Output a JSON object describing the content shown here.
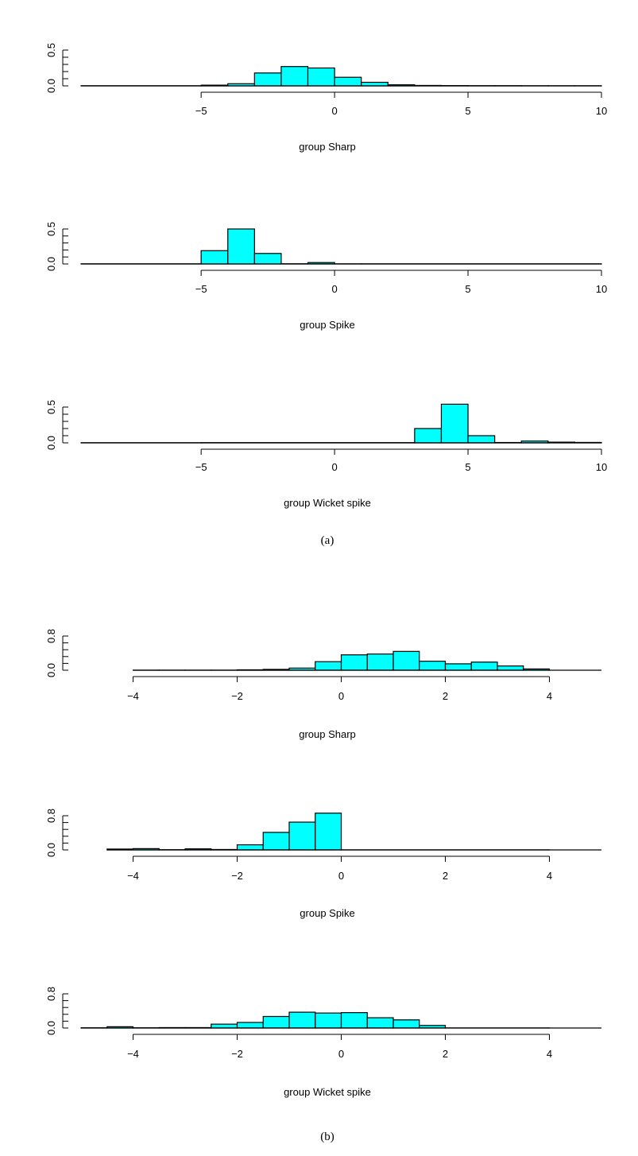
{
  "figure": {
    "captions": [
      "(a)",
      "(b)"
    ]
  },
  "chart_data": [
    {
      "type": "bar",
      "subfigure": "(a)",
      "xlabel": "group Sharp",
      "xlim": [
        -9.5,
        10
      ],
      "ylim": [
        0,
        0.5
      ],
      "xticks": [
        -5,
        0,
        5,
        10
      ],
      "yticks": [
        0.0,
        0.5
      ],
      "tick_labels_x": [
        "−5",
        "0",
        "5",
        "10"
      ],
      "tick_labels_y": [
        "0.0",
        "0.5"
      ],
      "bins": [
        [
          -9.5,
          -5
        ],
        [
          -5,
          -4
        ],
        [
          -4,
          -3
        ],
        [
          -3,
          -2
        ],
        [
          -2,
          -1
        ],
        [
          -1,
          0
        ],
        [
          0,
          1
        ],
        [
          1,
          2
        ],
        [
          2,
          3
        ],
        [
          3,
          4
        ],
        [
          4,
          5
        ],
        [
          5,
          6
        ],
        [
          6,
          7
        ],
        [
          7,
          8
        ],
        [
          8,
          9
        ],
        [
          9,
          10
        ]
      ],
      "values": [
        0.002,
        0.01,
        0.03,
        0.18,
        0.27,
        0.25,
        0.12,
        0.05,
        0.015,
        0.006,
        0.004,
        0.003,
        0.003,
        0.002,
        0.002,
        0.002
      ],
      "color": "#00ffff"
    },
    {
      "type": "bar",
      "subfigure": "(a)",
      "xlabel": "group Spike",
      "xlim": [
        -9.5,
        10
      ],
      "ylim": [
        0,
        0.5
      ],
      "xticks": [
        -5,
        0,
        5,
        10
      ],
      "yticks": [
        0.0,
        0.5
      ],
      "tick_labels_x": [
        "−5",
        "0",
        "5",
        "10"
      ],
      "tick_labels_y": [
        "0.0",
        "0.5"
      ],
      "bins": [
        [
          -9.5,
          -5
        ],
        [
          -5,
          -4
        ],
        [
          -4,
          -3
        ],
        [
          -3,
          -2
        ],
        [
          -2,
          -1
        ],
        [
          -1,
          0
        ],
        [
          0,
          1
        ],
        [
          1,
          10
        ]
      ],
      "values": [
        0.002,
        0.19,
        0.5,
        0.15,
        0.003,
        0.02,
        0.002,
        0.002
      ],
      "color": "#00ffff"
    },
    {
      "type": "bar",
      "subfigure": "(a)",
      "xlabel": "group Wicket spike",
      "xlim": [
        -9.5,
        10
      ],
      "ylim": [
        0,
        0.5
      ],
      "xticks": [
        -5,
        0,
        5,
        10
      ],
      "yticks": [
        0.0,
        0.5
      ],
      "tick_labels_x": [
        "−5",
        "0",
        "5",
        "10"
      ],
      "tick_labels_y": [
        "0.0",
        "0.5"
      ],
      "bins": [
        [
          -9.5,
          -5
        ],
        [
          -5,
          3
        ],
        [
          3,
          4
        ],
        [
          4,
          5
        ],
        [
          5,
          6
        ],
        [
          6,
          7
        ],
        [
          7,
          8
        ],
        [
          8,
          9
        ],
        [
          9,
          10
        ]
      ],
      "values": [
        0.002,
        0.003,
        0.2,
        0.54,
        0.1,
        0.005,
        0.025,
        0.01,
        0.006
      ],
      "color": "#00ffff"
    },
    {
      "type": "bar",
      "subfigure": "(b)",
      "xlabel": "group Sharp",
      "xlim": [
        -5,
        5
      ],
      "ylim": [
        0,
        0.8
      ],
      "xticks": [
        -4,
        -2,
        0,
        2,
        4
      ],
      "yticks": [
        0.0,
        0.8
      ],
      "tick_labels_x": [
        "−4",
        "−2",
        "0",
        "2",
        "4"
      ],
      "tick_labels_y": [
        "0.0",
        "0.8"
      ],
      "bins": [
        [
          -4,
          -3.5
        ],
        [
          -3.5,
          -3
        ],
        [
          -3,
          -2.5
        ],
        [
          -2.5,
          -2
        ],
        [
          -2,
          -1.5
        ],
        [
          -1.5,
          -1
        ],
        [
          -1,
          -0.5
        ],
        [
          -0.5,
          0
        ],
        [
          0,
          0.5
        ],
        [
          0.5,
          1
        ],
        [
          1,
          1.5
        ],
        [
          1.5,
          2
        ],
        [
          2,
          2.5
        ],
        [
          2.5,
          3
        ],
        [
          3,
          3.5
        ],
        [
          3.5,
          4
        ]
      ],
      "values": [
        0.002,
        0.002,
        0.002,
        0.002,
        0.01,
        0.02,
        0.05,
        0.2,
        0.36,
        0.38,
        0.44,
        0.21,
        0.15,
        0.19,
        0.1,
        0.03
      ],
      "color": "#00ffff"
    },
    {
      "type": "bar",
      "subfigure": "(b)",
      "xlabel": "group Spike",
      "xlim": [
        -5,
        5
      ],
      "ylim": [
        0,
        0.8
      ],
      "xticks": [
        -4,
        -2,
        0,
        2,
        4
      ],
      "yticks": [
        0.0,
        0.8
      ],
      "tick_labels_x": [
        "−4",
        "−2",
        "0",
        "2",
        "4"
      ],
      "tick_labels_y": [
        "0.0",
        "0.8"
      ],
      "bins": [
        [
          -4.5,
          -4
        ],
        [
          -4,
          -3.5
        ],
        [
          -3.5,
          -3
        ],
        [
          -3,
          -2.5
        ],
        [
          -2.5,
          -2
        ],
        [
          -2,
          -1.5
        ],
        [
          -1.5,
          -1
        ],
        [
          -1,
          -0.5
        ],
        [
          -0.5,
          0
        ],
        [
          0,
          4
        ]
      ],
      "values": [
        0.02,
        0.03,
        0.005,
        0.025,
        0.01,
        0.12,
        0.41,
        0.65,
        0.86,
        0.002
      ],
      "color": "#00ffff"
    },
    {
      "type": "bar",
      "subfigure": "(b)",
      "xlabel": "group Wicket spike",
      "xlim": [
        -5,
        5
      ],
      "ylim": [
        0,
        0.8
      ],
      "xticks": [
        -4,
        -2,
        0,
        2,
        4
      ],
      "yticks": [
        0.0,
        0.8
      ],
      "tick_labels_x": [
        "−4",
        "−2",
        "0",
        "2",
        "4"
      ],
      "tick_labels_y": [
        "0.0",
        "0.8"
      ],
      "bins": [
        [
          -5,
          -4.5
        ],
        [
          -4.5,
          -4
        ],
        [
          -4,
          -3.5
        ],
        [
          -3.5,
          -3
        ],
        [
          -3,
          -2.5
        ],
        [
          -2.5,
          -2
        ],
        [
          -2,
          -1.5
        ],
        [
          -1.5,
          -1
        ],
        [
          -1,
          -0.5
        ],
        [
          -0.5,
          0
        ],
        [
          0,
          0.5
        ],
        [
          0.5,
          1
        ],
        [
          1,
          1.5
        ],
        [
          1.5,
          2
        ],
        [
          2,
          4
        ]
      ],
      "values": [
        0.005,
        0.03,
        0.005,
        0.01,
        0.01,
        0.09,
        0.13,
        0.27,
        0.37,
        0.35,
        0.36,
        0.24,
        0.19,
        0.06,
        0.002
      ],
      "color": "#00ffff"
    }
  ]
}
